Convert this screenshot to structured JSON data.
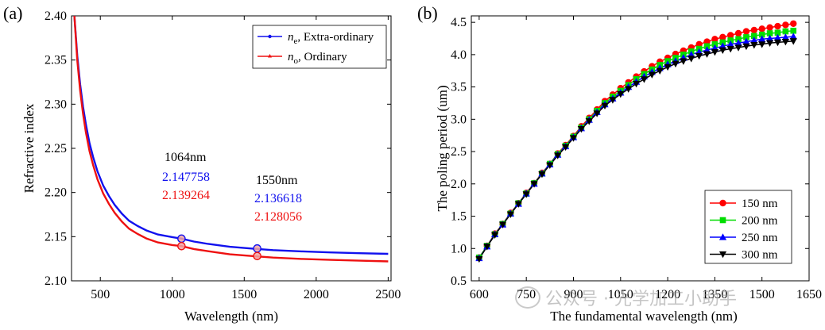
{
  "watermark": {
    "text": "公众号 · 光学加工小助手",
    "icon": "chat-bubble-icon"
  },
  "chart_data": [
    {
      "type": "line",
      "panel_label": "(a)",
      "xlabel": "Wavelength (nm)",
      "ylabel": "Refractive index",
      "xlim": [
        300,
        2520
      ],
      "ylim": [
        2.1,
        2.4
      ],
      "xticks": [
        500,
        1000,
        1500,
        2000,
        2500
      ],
      "yticks": [
        2.1,
        2.15,
        2.2,
        2.25,
        2.3,
        2.35,
        2.4
      ],
      "xtick_labels": [
        "500",
        "1000",
        "1500",
        "2000",
        "2500"
      ],
      "ytick_labels": [
        "2.10",
        "2.15",
        "2.20",
        "2.25",
        "2.30",
        "2.35",
        "2.40"
      ],
      "series": [
        {
          "name": "Extra-ordinary",
          "symbol": "n",
          "subscript": "e",
          "color": "#1111ee",
          "x": [
            320,
            340,
            360,
            380,
            400,
            425,
            450,
            480,
            520,
            560,
            600,
            650,
            700,
            760,
            820,
            900,
            1000,
            1064,
            1150,
            1250,
            1400,
            1550,
            1700,
            1900,
            2100,
            2300,
            2500
          ],
          "y": [
            2.4,
            2.355,
            2.322,
            2.297,
            2.277,
            2.256,
            2.24,
            2.224,
            2.208,
            2.196,
            2.186,
            2.176,
            2.168,
            2.162,
            2.157,
            2.1525,
            2.1495,
            2.1478,
            2.1445,
            2.1418,
            2.1385,
            2.1366,
            2.1348,
            2.1333,
            2.1322,
            2.1313,
            2.1305
          ]
        },
        {
          "name": "Ordinary",
          "symbol": "n",
          "subscript": "o",
          "color": "#ee1111",
          "x": [
            320,
            340,
            360,
            380,
            400,
            425,
            450,
            480,
            520,
            560,
            600,
            650,
            700,
            760,
            820,
            900,
            1000,
            1064,
            1150,
            1250,
            1400,
            1550,
            1700,
            1900,
            2100,
            2300,
            2500
          ],
          "y": [
            2.4,
            2.35,
            2.315,
            2.289,
            2.268,
            2.247,
            2.231,
            2.215,
            2.199,
            2.187,
            2.177,
            2.167,
            2.159,
            2.153,
            2.148,
            2.1435,
            2.1405,
            2.1393,
            2.136,
            2.1335,
            2.13,
            2.1281,
            2.1263,
            2.1248,
            2.1237,
            2.1228,
            2.122
          ]
        }
      ],
      "markers": [
        {
          "x": 1064,
          "y": 2.147758,
          "series": "Extra-ordinary"
        },
        {
          "x": 1064,
          "y": 2.139264,
          "series": "Ordinary"
        },
        {
          "x": 1590,
          "y": 2.136618,
          "series": "Extra-ordinary"
        },
        {
          "x": 1590,
          "y": 2.128056,
          "series": "Ordinary"
        }
      ],
      "annotations": [
        {
          "label": "1064nm",
          "ne": "2.147758",
          "no": "2.139264"
        },
        {
          "label": "1550nm",
          "ne": "2.136618",
          "no": "2.128056"
        }
      ],
      "legend_position": "top-right"
    },
    {
      "type": "line",
      "panel_label": "(b)",
      "xlabel": "The fundamental wavelength (nm)",
      "ylabel": "The poling period (um)",
      "xlim": [
        575,
        1650
      ],
      "ylim": [
        0.5,
        4.6
      ],
      "xticks": [
        600,
        750,
        900,
        1050,
        1200,
        1350,
        1500,
        1650
      ],
      "yticks": [
        0.5,
        1.0,
        1.5,
        2.0,
        2.5,
        3.0,
        3.5,
        4.0,
        4.5
      ],
      "xtick_labels": [
        "600",
        "750",
        "900",
        "1050",
        "1200",
        "1350",
        "1500",
        "1650"
      ],
      "ytick_labels": [
        "0.5",
        "1.0",
        "1.5",
        "2.0",
        "2.5",
        "3.0",
        "3.5",
        "4.0",
        "4.5"
      ],
      "x": [
        600,
        625,
        650,
        675,
        700,
        725,
        750,
        775,
        800,
        825,
        850,
        875,
        900,
        925,
        950,
        975,
        1000,
        1025,
        1050,
        1075,
        1100,
        1125,
        1150,
        1175,
        1200,
        1225,
        1250,
        1275,
        1300,
        1325,
        1350,
        1375,
        1400,
        1425,
        1450,
        1475,
        1500,
        1525,
        1550,
        1575,
        1600
      ],
      "series": [
        {
          "name": "150 nm",
          "color": "#ff0000",
          "marker": "circle",
          "values": [
            0.86,
            1.04,
            1.23,
            1.38,
            1.55,
            1.7,
            1.86,
            2.01,
            2.17,
            2.31,
            2.47,
            2.6,
            2.74,
            2.89,
            3.02,
            3.15,
            3.28,
            3.38,
            3.48,
            3.57,
            3.66,
            3.74,
            3.82,
            3.89,
            3.95,
            4.01,
            4.06,
            4.11,
            4.16,
            4.2,
            4.24,
            4.27,
            4.3,
            4.33,
            4.36,
            4.38,
            4.4,
            4.42,
            4.44,
            4.46,
            4.48
          ]
        },
        {
          "name": "200 nm",
          "color": "#00dd00",
          "marker": "square",
          "values": [
            0.86,
            1.04,
            1.22,
            1.38,
            1.54,
            1.7,
            1.85,
            2.01,
            2.16,
            2.31,
            2.46,
            2.59,
            2.73,
            2.87,
            3.0,
            3.13,
            3.25,
            3.35,
            3.44,
            3.53,
            3.62,
            3.7,
            3.77,
            3.84,
            3.9,
            3.95,
            4.0,
            4.05,
            4.09,
            4.13,
            4.16,
            4.19,
            4.22,
            4.24,
            4.27,
            4.29,
            4.31,
            4.33,
            4.34,
            4.36,
            4.37
          ]
        },
        {
          "name": "250 nm",
          "color": "#0000ff",
          "marker": "triangle-up",
          "values": [
            0.85,
            1.03,
            1.22,
            1.37,
            1.54,
            1.69,
            1.85,
            2.0,
            2.16,
            2.3,
            2.45,
            2.58,
            2.72,
            2.86,
            2.99,
            3.11,
            3.23,
            3.32,
            3.41,
            3.5,
            3.58,
            3.66,
            3.73,
            3.79,
            3.85,
            3.9,
            3.95,
            4.0,
            4.04,
            4.07,
            4.1,
            4.13,
            4.16,
            4.18,
            4.2,
            4.22,
            4.24,
            4.25,
            4.26,
            4.27,
            4.28
          ]
        },
        {
          "name": "300 nm",
          "color": "#000000",
          "marker": "triangle-down",
          "values": [
            0.84,
            1.03,
            1.21,
            1.37,
            1.53,
            1.69,
            1.84,
            2.0,
            2.15,
            2.29,
            2.44,
            2.57,
            2.71,
            2.85,
            2.97,
            3.09,
            3.21,
            3.3,
            3.39,
            3.47,
            3.55,
            3.62,
            3.69,
            3.75,
            3.81,
            3.86,
            3.9,
            3.94,
            3.98,
            4.01,
            4.04,
            4.07,
            4.09,
            4.11,
            4.13,
            4.15,
            4.16,
            4.18,
            4.19,
            4.2,
            4.21
          ]
        }
      ],
      "legend_position": "bottom-right"
    }
  ]
}
